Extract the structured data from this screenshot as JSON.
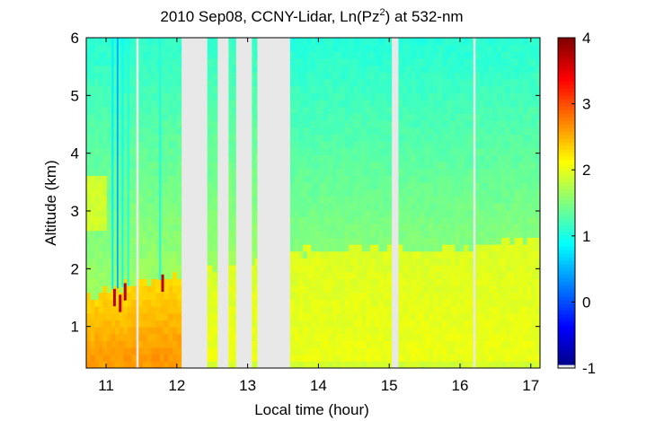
{
  "chart_data": {
    "type": "heatmap",
    "title_main": "2010 Sep08, CCNY-Lidar, Ln(Pz",
    "title_sup": "2",
    "title_tail": ") at 532-nm",
    "xlabel": "Local time (hour)",
    "ylabel": "Altitude (km)",
    "xlim": [
      10.72,
      17.13
    ],
    "ylim": [
      0.28,
      6.0
    ],
    "xticks": [
      11,
      12,
      13,
      14,
      15,
      16,
      17
    ],
    "yticks": [
      1,
      2,
      3,
      4,
      5,
      6
    ],
    "xtick_labels": [
      "11",
      "12",
      "13",
      "14",
      "15",
      "16",
      "17"
    ],
    "ytick_labels": [
      "1",
      "2",
      "3",
      "4",
      "5",
      "6"
    ],
    "colorbar": {
      "range": [
        -1,
        4
      ],
      "ticks": [
        -1,
        0,
        1,
        2,
        3,
        4
      ],
      "tick_labels": [
        "-1",
        "0",
        "1",
        "2",
        "3",
        "4"
      ],
      "colormap": "jet",
      "no_data_color": "#e8e8e8"
    },
    "data_segments_hours": [
      [
        10.72,
        11.42
      ],
      [
        11.46,
        12.06
      ],
      [
        12.43,
        12.57
      ],
      [
        12.73,
        12.83
      ],
      [
        13.06,
        13.13
      ],
      [
        13.6,
        15.03
      ],
      [
        15.13,
        16.18
      ],
      [
        16.22,
        17.13
      ]
    ],
    "no_data_gaps_hours": [
      [
        11.42,
        11.46
      ],
      [
        12.06,
        12.43
      ],
      [
        12.57,
        12.73
      ],
      [
        12.83,
        13.06
      ],
      [
        13.13,
        13.6
      ],
      [
        15.03,
        15.13
      ],
      [
        16.18,
        16.22
      ]
    ],
    "boundary_layer_height_km": [
      {
        "x": 10.72,
        "y": 1.55
      },
      {
        "x": 11.5,
        "y": 1.75
      },
      {
        "x": 12.0,
        "y": 1.85
      },
      {
        "x": 13.7,
        "y": 2.3
      },
      {
        "x": 14.5,
        "y": 2.35
      },
      {
        "x": 15.5,
        "y": 2.35
      },
      {
        "x": 16.5,
        "y": 2.45
      },
      {
        "x": 17.13,
        "y": 2.55
      }
    ],
    "aerosol_layer": {
      "x": [
        10.72,
        11.0
      ],
      "y": [
        2.65,
        3.65
      ],
      "value": 1.9
    }
  },
  "colors": {
    "background": "#ffffff",
    "no_data": "#e8e8e8",
    "axis": "#000000"
  }
}
